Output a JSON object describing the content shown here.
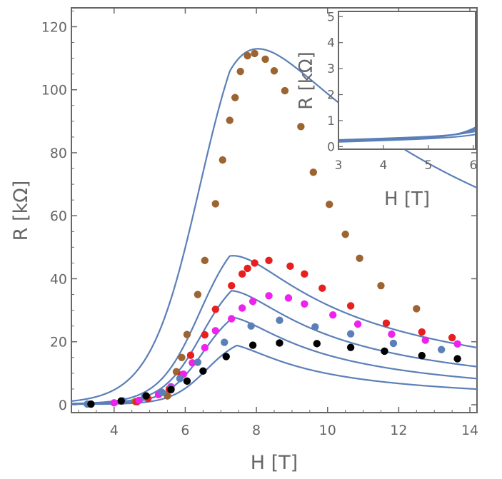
{
  "chart_data": [
    {
      "id": "main",
      "type": "scatter",
      "xlabel": "H [T]",
      "ylabel": "R [kΩ]",
      "xlim": [
        2.8,
        14.2
      ],
      "ylim": [
        -2.5,
        126
      ],
      "xticks": [
        4,
        6,
        8,
        10,
        12,
        14
      ],
      "yticks": [
        0,
        20,
        40,
        60,
        80,
        100,
        120
      ],
      "xtick_labels": [
        "4",
        "6",
        "8",
        "10",
        "12",
        "14"
      ],
      "ytick_labels": [
        "0",
        "20",
        "40",
        "60",
        "80",
        "100",
        "120"
      ],
      "line_color": "#5b7fb8",
      "series": [
        {
          "name": "brown",
          "color": "#9c6430",
          "points": [
            [
              4.6,
              1.0
            ],
            [
              5.5,
              2.8
            ],
            [
              5.75,
              10.5
            ],
            [
              5.9,
              15.0
            ],
            [
              6.05,
              22.3
            ],
            [
              6.35,
              35.0
            ],
            [
              6.55,
              45.8
            ],
            [
              6.85,
              63.8
            ],
            [
              7.05,
              77.7
            ],
            [
              7.25,
              90.3
            ],
            [
              7.4,
              97.5
            ],
            [
              7.55,
              105.8
            ],
            [
              7.75,
              110.8
            ],
            [
              7.95,
              111.5
            ],
            [
              8.25,
              109.7
            ],
            [
              8.5,
              106.0
            ],
            [
              8.8,
              99.7
            ],
            [
              9.25,
              88.3
            ],
            [
              9.6,
              73.8
            ],
            [
              10.05,
              63.6
            ],
            [
              10.5,
              54.1
            ],
            [
              10.9,
              46.5
            ],
            [
              11.5,
              37.8
            ],
            [
              12.5,
              30.5
            ]
          ]
        },
        {
          "name": "red",
          "color": "#e81f1f",
          "points": [
            [
              4.65,
              1.0
            ],
            [
              4.95,
              2.0
            ],
            [
              5.55,
              5.0
            ],
            [
              5.9,
              9.5
            ],
            [
              6.15,
              15.7
            ],
            [
              6.55,
              22.2
            ],
            [
              6.85,
              30.3
            ],
            [
              7.3,
              37.8
            ],
            [
              7.6,
              41.5
            ],
            [
              7.75,
              43.3
            ],
            [
              7.95,
              45.0
            ],
            [
              8.35,
              45.8
            ],
            [
              8.95,
              44.0
            ],
            [
              9.35,
              41.5
            ],
            [
              9.85,
              37.0
            ],
            [
              10.65,
              31.4
            ],
            [
              11.65,
              25.9
            ],
            [
              12.65,
              23.1
            ],
            [
              13.5,
              21.3
            ]
          ]
        },
        {
          "name": "magenta",
          "color": "#ee22ee",
          "points": [
            [
              4.0,
              0.6
            ],
            [
              4.7,
              1.4
            ],
            [
              5.25,
              3.2
            ],
            [
              5.6,
              5.7
            ],
            [
              5.95,
              9.7
            ],
            [
              6.2,
              13.3
            ],
            [
              6.55,
              18.1
            ],
            [
              6.85,
              23.5
            ],
            [
              7.3,
              27.3
            ],
            [
              7.6,
              30.7
            ],
            [
              7.9,
              32.8
            ],
            [
              8.35,
              34.6
            ],
            [
              8.9,
              33.9
            ],
            [
              9.35,
              32.0
            ],
            [
              10.15,
              28.5
            ],
            [
              10.85,
              25.6
            ],
            [
              11.8,
              22.4
            ],
            [
              12.75,
              20.5
            ],
            [
              13.65,
              19.3
            ]
          ]
        },
        {
          "name": "blue",
          "color": "#5b7fb8",
          "points": [
            [
              3.25,
              0.2
            ],
            [
              4.25,
              1.2
            ],
            [
              4.85,
              2.4
            ],
            [
              5.35,
              3.9
            ],
            [
              5.6,
              5.3
            ],
            [
              5.85,
              8.3
            ],
            [
              6.35,
              13.5
            ],
            [
              7.1,
              19.8
            ],
            [
              7.85,
              25.0
            ],
            [
              8.65,
              26.8
            ],
            [
              9.65,
              24.7
            ],
            [
              10.65,
              22.5
            ],
            [
              11.85,
              19.5
            ],
            [
              13.2,
              17.5
            ]
          ]
        },
        {
          "name": "black",
          "color": "#000000",
          "points": [
            [
              3.35,
              0.2
            ],
            [
              4.2,
              1.2
            ],
            [
              4.9,
              2.8
            ],
            [
              5.6,
              4.8
            ],
            [
              6.05,
              7.5
            ],
            [
              6.5,
              10.7
            ],
            [
              7.15,
              15.3
            ],
            [
              7.9,
              18.9
            ],
            [
              8.65,
              19.6
            ],
            [
              9.7,
              19.4
            ],
            [
              10.65,
              18.2
            ],
            [
              11.6,
              17.0
            ],
            [
              12.65,
              15.6
            ],
            [
              13.65,
              14.6
            ]
          ]
        }
      ],
      "fits": [
        {
          "name": "fit-1",
          "peak_x": 7.85,
          "peak_y": 113,
          "floor": 1.0,
          "fall": 0.35,
          "tail_pow": 1.15,
          "skew": 1.28
        },
        {
          "name": "fit-2",
          "peak_x": 7.85,
          "peak_y": 47.3,
          "floor": 0.8,
          "fall": 0.72,
          "tail_pow": 1.18,
          "skew": 1.05
        },
        {
          "name": "fit-3",
          "peak_x": 7.9,
          "peak_y": 36.2,
          "floor": 0.7,
          "fall": 0.86,
          "tail_pow": 1.18,
          "skew": 1.0
        },
        {
          "name": "fit-4",
          "peak_x": 7.95,
          "peak_y": 27.7,
          "floor": 0.6,
          "fall": 0.98,
          "tail_pow": 1.18,
          "skew": 0.95
        },
        {
          "name": "fit-5",
          "peak_x": 8.05,
          "peak_y": 18.8,
          "floor": 0.5,
          "fall": 1.15,
          "tail_pow": 1.18,
          "skew": 0.9
        }
      ]
    },
    {
      "id": "inset",
      "type": "line",
      "xlabel": "H [T]",
      "ylabel": "R [kΩ]",
      "xlim": [
        3.0,
        6.05
      ],
      "ylim": [
        -0.1,
        5.2
      ],
      "xticks": [
        3,
        4,
        5,
        6
      ],
      "yticks": [
        0,
        1,
        2,
        3,
        4,
        5
      ],
      "xtick_labels": [
        "3",
        "4",
        "5",
        "6"
      ],
      "ytick_labels": [
        "0",
        "1",
        "2",
        "3",
        "4",
        "5"
      ],
      "line_color": "#5b7fb8",
      "curves": [
        {
          "name": "inset-curve-1",
          "r0": 0.2,
          "a": 0.12,
          "k": 2.35
        },
        {
          "name": "inset-curve-2",
          "r0": 0.22,
          "a": 0.12,
          "k": 2.25
        },
        {
          "name": "inset-curve-3",
          "r0": 0.24,
          "a": 0.11,
          "k": 2.15
        },
        {
          "name": "inset-curve-4",
          "r0": 0.26,
          "a": 0.12,
          "k": 2.0
        },
        {
          "name": "inset-curve-5",
          "r0": 0.18,
          "a": 0.13,
          "k": 1.85
        }
      ]
    }
  ]
}
